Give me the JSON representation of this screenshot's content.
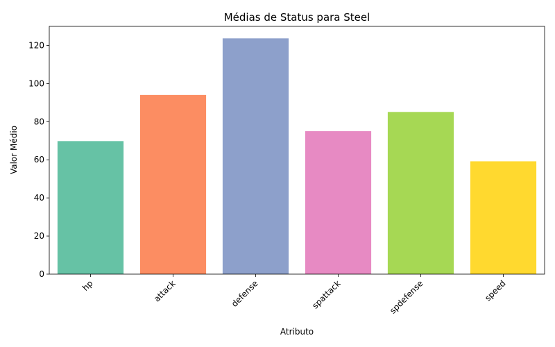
{
  "chart_data": {
    "type": "bar",
    "title": "Médias de Status para Steel",
    "xlabel": "Atributo",
    "ylabel": "Valor Médio",
    "categories": [
      "hp",
      "attack",
      "defense",
      "spattack",
      "spdefense",
      "speed"
    ],
    "values": [
      69.8,
      94.0,
      123.7,
      75.0,
      85.1,
      59.2
    ],
    "colors": [
      "#66c2a5",
      "#fc8d62",
      "#8da0cb",
      "#e78ac3",
      "#a6d854",
      "#ffd92f"
    ],
    "ylim": [
      0,
      130
    ],
    "yticks": [
      0,
      20,
      40,
      60,
      80,
      100,
      120
    ],
    "grid": false,
    "legend": "none"
  }
}
